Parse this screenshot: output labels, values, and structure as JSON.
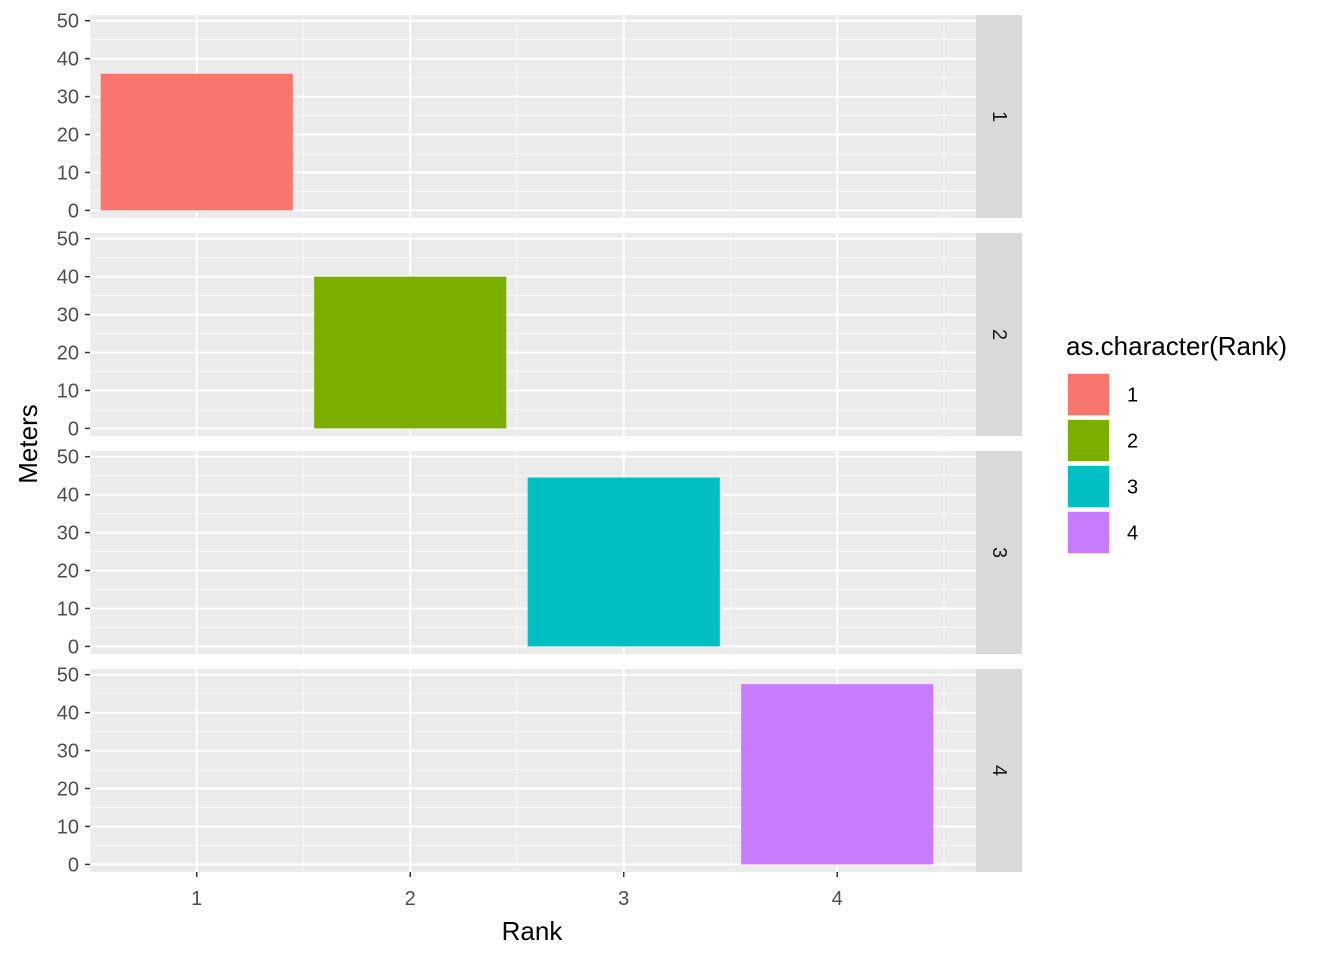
{
  "chart_data": {
    "type": "bar",
    "facet_by": "Rank",
    "facets": [
      "1",
      "2",
      "3",
      "4"
    ],
    "x": {
      "label": "Rank",
      "ticks": [
        1,
        2,
        3,
        4
      ],
      "tick_labels": [
        "1",
        "2",
        "3",
        "4"
      ],
      "range": [
        0.5,
        4.65
      ]
    },
    "y": {
      "label": "Meters",
      "ticks": [
        0,
        10,
        20,
        30,
        40,
        50
      ],
      "tick_labels": [
        "0",
        "10",
        "20",
        "30",
        "40",
        "50"
      ],
      "range": [
        -2,
        51.5
      ]
    },
    "bars": [
      {
        "facet": "1",
        "x": 1,
        "value": 36,
        "fill": "#F8766D"
      },
      {
        "facet": "2",
        "x": 2,
        "value": 40,
        "fill": "#7CAE00"
      },
      {
        "facet": "3",
        "x": 3,
        "value": 44.5,
        "fill": "#00BFC4"
      },
      {
        "facet": "4",
        "x": 4,
        "value": 47.5,
        "fill": "#C77CFF"
      }
    ],
    "legend": {
      "title": "as.character(Rank)",
      "placement": "right",
      "items": [
        {
          "label": "1",
          "color": "#F8766D"
        },
        {
          "label": "2",
          "color": "#7CAE00"
        },
        {
          "label": "3",
          "color": "#00BFC4"
        },
        {
          "label": "4",
          "color": "#C77CFF"
        }
      ]
    },
    "grid": true,
    "colors": {
      "panel_bg": "#EBEBEB",
      "grid_major": "#FFFFFF",
      "strip_bg": "#D9D9D9",
      "tick_mark": "#333333"
    }
  }
}
